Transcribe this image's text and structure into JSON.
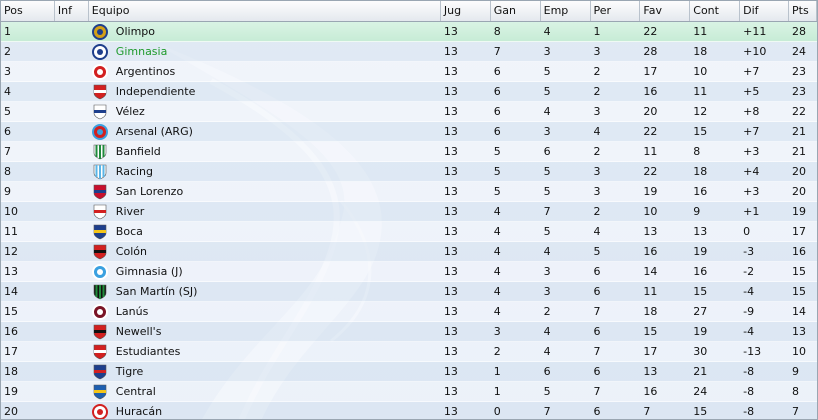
{
  "headers": {
    "pos": "Pos",
    "inf": "Inf",
    "team": "Equipo",
    "jug": "Jug",
    "gan": "Gan",
    "emp": "Emp",
    "per": "Per",
    "fav": "Fav",
    "cont": "Cont",
    "dif": "Dif",
    "pts": "Pts"
  },
  "rows": [
    {
      "pos": "1",
      "inf": "",
      "team": "Olimpo",
      "jug": "13",
      "gan": "8",
      "emp": "4",
      "per": "1",
      "fav": "22",
      "cont": "11",
      "dif": "+11",
      "pts": "28",
      "icon": "olimpo-crest-icon",
      "c1": "#d4a017",
      "c2": "#1e3f8c",
      "shape": "circle"
    },
    {
      "pos": "2",
      "inf": "",
      "team": "Gimnasia",
      "jug": "13",
      "gan": "7",
      "emp": "3",
      "per": "3",
      "fav": "28",
      "cont": "18",
      "dif": "+10",
      "pts": "24",
      "icon": "gimnasia-crest-icon",
      "c1": "#ffffff",
      "c2": "#1e3f8c",
      "shape": "circle",
      "highlight": true
    },
    {
      "pos": "3",
      "inf": "",
      "team": "Argentinos",
      "jug": "13",
      "gan": "6",
      "emp": "5",
      "per": "2",
      "fav": "17",
      "cont": "10",
      "dif": "+7",
      "pts": "23",
      "icon": "argentinos-crest-icon",
      "c1": "#d22020",
      "c2": "#ffffff",
      "shape": "circle"
    },
    {
      "pos": "4",
      "inf": "",
      "team": "Independiente",
      "jug": "13",
      "gan": "6",
      "emp": "5",
      "per": "2",
      "fav": "16",
      "cont": "11",
      "dif": "+5",
      "pts": "23",
      "icon": "independiente-crest-icon",
      "c1": "#d22020",
      "c2": "#ffffff",
      "shape": "shield"
    },
    {
      "pos": "5",
      "inf": "",
      "team": "Vélez",
      "jug": "13",
      "gan": "6",
      "emp": "4",
      "per": "3",
      "fav": "20",
      "cont": "12",
      "dif": "+8",
      "pts": "22",
      "icon": "velez-crest-icon",
      "c1": "#ffffff",
      "c2": "#1e3f8c",
      "shape": "shield"
    },
    {
      "pos": "6",
      "inf": "",
      "team": "Arsenal (ARG)",
      "jug": "13",
      "gan": "6",
      "emp": "3",
      "per": "4",
      "fav": "22",
      "cont": "15",
      "dif": "+7",
      "pts": "21",
      "icon": "arsenal-crest-icon",
      "c1": "#d22020",
      "c2": "#3aa0e0",
      "shape": "circle"
    },
    {
      "pos": "7",
      "inf": "",
      "team": "Banfield",
      "jug": "13",
      "gan": "5",
      "emp": "6",
      "per": "2",
      "fav": "11",
      "cont": "8",
      "dif": "+3",
      "pts": "21",
      "icon": "banfield-crest-icon",
      "c1": "#1f8a3c",
      "c2": "#ffffff",
      "shape": "stripes"
    },
    {
      "pos": "8",
      "inf": "",
      "team": "Racing",
      "jug": "13",
      "gan": "5",
      "emp": "5",
      "per": "3",
      "fav": "22",
      "cont": "18",
      "dif": "+4",
      "pts": "20",
      "icon": "racing-crest-icon",
      "c1": "#5ab4e6",
      "c2": "#ffffff",
      "shape": "stripes"
    },
    {
      "pos": "9",
      "inf": "",
      "team": "San Lorenzo",
      "jug": "13",
      "gan": "5",
      "emp": "5",
      "per": "3",
      "fav": "19",
      "cont": "16",
      "dif": "+3",
      "pts": "20",
      "icon": "san-lorenzo-crest-icon",
      "c1": "#c8102e",
      "c2": "#1e3f8c",
      "shape": "shield"
    },
    {
      "pos": "10",
      "inf": "",
      "team": "River",
      "jug": "13",
      "gan": "4",
      "emp": "7",
      "per": "2",
      "fav": "10",
      "cont": "9",
      "dif": "+1",
      "pts": "19",
      "icon": "river-crest-icon",
      "c1": "#ffffff",
      "c2": "#d22020",
      "shape": "shield"
    },
    {
      "pos": "11",
      "inf": "",
      "team": "Boca",
      "jug": "13",
      "gan": "4",
      "emp": "5",
      "per": "4",
      "fav": "13",
      "cont": "13",
      "dif": "0",
      "pts": "17",
      "icon": "boca-crest-icon",
      "c1": "#1e3f8c",
      "c2": "#f5c518",
      "shape": "shield"
    },
    {
      "pos": "12",
      "inf": "",
      "team": "Colón",
      "jug": "13",
      "gan": "4",
      "emp": "4",
      "per": "5",
      "fav": "16",
      "cont": "19",
      "dif": "-3",
      "pts": "16",
      "icon": "colon-crest-icon",
      "c1": "#d22020",
      "c2": "#111111",
      "shape": "shield"
    },
    {
      "pos": "13",
      "inf": "",
      "team": "Gimnasia (J)",
      "jug": "13",
      "gan": "4",
      "emp": "3",
      "per": "6",
      "fav": "14",
      "cont": "16",
      "dif": "-2",
      "pts": "15",
      "icon": "gimnasia-j-crest-icon",
      "c1": "#3aa0e0",
      "c2": "#ffffff",
      "shape": "circle"
    },
    {
      "pos": "14",
      "inf": "",
      "team": "San Martín (SJ)",
      "jug": "13",
      "gan": "4",
      "emp": "3",
      "per": "6",
      "fav": "11",
      "cont": "15",
      "dif": "-4",
      "pts": "15",
      "icon": "san-martin-crest-icon",
      "c1": "#1f8a3c",
      "c2": "#111111",
      "shape": "stripes"
    },
    {
      "pos": "15",
      "inf": "",
      "team": "Lanús",
      "jug": "13",
      "gan": "4",
      "emp": "2",
      "per": "7",
      "fav": "18",
      "cont": "27",
      "dif": "-9",
      "pts": "14",
      "icon": "lanus-crest-icon",
      "c1": "#7a1426",
      "c2": "#ffffff",
      "shape": "circle"
    },
    {
      "pos": "16",
      "inf": "",
      "team": "Newell's",
      "jug": "13",
      "gan": "3",
      "emp": "4",
      "per": "6",
      "fav": "15",
      "cont": "19",
      "dif": "-4",
      "pts": "13",
      "icon": "newells-crest-icon",
      "c1": "#d22020",
      "c2": "#111111",
      "shape": "shield"
    },
    {
      "pos": "17",
      "inf": "",
      "team": "Estudiantes",
      "jug": "13",
      "gan": "2",
      "emp": "4",
      "per": "7",
      "fav": "17",
      "cont": "30",
      "dif": "-13",
      "pts": "10",
      "icon": "estudiantes-crest-icon",
      "c1": "#d22020",
      "c2": "#ffffff",
      "shape": "shield"
    },
    {
      "pos": "18",
      "inf": "",
      "team": "Tigre",
      "jug": "13",
      "gan": "1",
      "emp": "6",
      "per": "6",
      "fav": "13",
      "cont": "21",
      "dif": "-8",
      "pts": "9",
      "icon": "tigre-crest-icon",
      "c1": "#1e3f8c",
      "c2": "#d22020",
      "shape": "shield"
    },
    {
      "pos": "19",
      "inf": "",
      "team": "Central",
      "jug": "13",
      "gan": "1",
      "emp": "5",
      "per": "7",
      "fav": "16",
      "cont": "24",
      "dif": "-8",
      "pts": "8",
      "icon": "central-crest-icon",
      "c1": "#1e5fb0",
      "c2": "#f5c518",
      "shape": "shield"
    },
    {
      "pos": "20",
      "inf": "",
      "team": "Huracán",
      "jug": "13",
      "gan": "0",
      "emp": "7",
      "per": "6",
      "fav": "7",
      "cont": "15",
      "dif": "-8",
      "pts": "7",
      "icon": "huracan-crest-icon",
      "c1": "#ffffff",
      "c2": "#d22020",
      "shape": "circle"
    }
  ],
  "colors": {
    "selected_row": "#c7ecd6",
    "highlight_text": "#1f9a2c",
    "alt_row": "#c6d6ea"
  }
}
